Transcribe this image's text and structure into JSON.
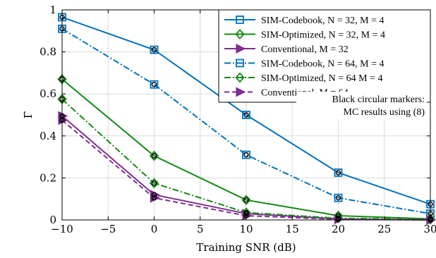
{
  "chart_data": {
    "type": "line",
    "title": "",
    "xlabel": "Training SNR (dB)",
    "ylabel": "Γ̄",
    "xlim": [
      -10,
      30
    ],
    "ylim": [
      0,
      1
    ],
    "xticks": [
      -10,
      -5,
      0,
      5,
      10,
      15,
      20,
      25,
      30
    ],
    "yticks": [
      0,
      0.2,
      0.4,
      0.6,
      0.8,
      1
    ],
    "xtick_labels": [
      "−10",
      "−5",
      "0",
      "5",
      "10",
      "15",
      "20",
      "25",
      "30"
    ],
    "ytick_labels": [
      "0",
      "0.2",
      "0.4",
      "0.6",
      "0.8",
      "1"
    ],
    "grid": true,
    "legend_position": "top-right",
    "annotation": [
      "Black circular markers:",
      "MC results using (8)"
    ],
    "series": [
      {
        "name": "SIM-Codebook, N = 32, M = 4",
        "color": "#0072BD",
        "dash": "solid",
        "marker": "square",
        "x": [
          -10,
          0,
          10,
          20,
          30
        ],
        "y": [
          0.965,
          0.81,
          0.5,
          0.225,
          0.075
        ]
      },
      {
        "name": "SIM-Optimized, N = 32, M = 4",
        "color": "#138A13",
        "dash": "solid",
        "marker": "diamond",
        "x": [
          -10,
          0,
          10,
          20,
          30
        ],
        "y": [
          0.67,
          0.305,
          0.095,
          0.02,
          0.005
        ]
      },
      {
        "name": "Conventional, M = 32",
        "color": "#7E2F8E",
        "dash": "solid",
        "marker": "triangle-right",
        "x": [
          -10,
          0,
          10,
          20,
          30
        ],
        "y": [
          0.495,
          0.12,
          0.03,
          0.005,
          0.0
        ]
      },
      {
        "name": "SIM-Codebook, N = 64, M = 4",
        "color": "#0072BD",
        "dash": "dashdot",
        "marker": "square",
        "x": [
          -10,
          0,
          10,
          20,
          30
        ],
        "y": [
          0.91,
          0.645,
          0.31,
          0.105,
          0.03
        ]
      },
      {
        "name": "SIM-Optimized, N = 64 M = 4",
        "color": "#138A13",
        "dash": "dashdot",
        "marker": "diamond",
        "x": [
          -10,
          0,
          10,
          20,
          30
        ],
        "y": [
          0.575,
          0.175,
          0.035,
          0.008,
          0.002
        ]
      },
      {
        "name": "Conventional, M = 64",
        "color": "#7E2F8E",
        "dash": "dashed",
        "marker": "triangle-right",
        "x": [
          -10,
          0,
          10,
          20,
          30
        ],
        "y": [
          0.475,
          0.105,
          0.02,
          0.003,
          0.0
        ]
      }
    ]
  }
}
